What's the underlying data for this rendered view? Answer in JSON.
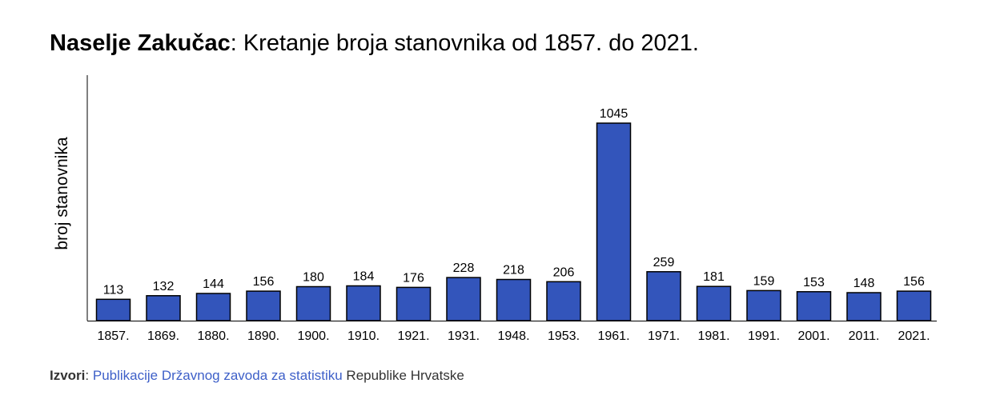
{
  "title": {
    "place": "Naselje Zakučac",
    "separator": ":",
    "text": " Kretanje broja stanovnika od 1857. do 2021."
  },
  "chart_data": {
    "type": "bar",
    "categories": [
      "1857.",
      "1869.",
      "1880.",
      "1890.",
      "1900.",
      "1910.",
      "1921.",
      "1931.",
      "1948.",
      "1953.",
      "1961.",
      "1971.",
      "1981.",
      "1991.",
      "2001.",
      "2011.",
      "2021."
    ],
    "values": [
      113,
      132,
      144,
      156,
      180,
      184,
      176,
      228,
      218,
      206,
      1045,
      259,
      181,
      159,
      153,
      148,
      156
    ],
    "ylabel": "broj stanovnika",
    "ylim": [
      0,
      1200
    ],
    "grid": false,
    "legend": "none",
    "colors": {
      "bar_fill": "#3355bb",
      "bar_stroke": "#000000",
      "axis": "#000000"
    }
  },
  "source": {
    "label": "Izvori",
    "separator": ": ",
    "link_text": "Publikacije Državnog zavoda za statistiku",
    "suffix": " Republike Hrvatske",
    "link_color": "#3d5fc8"
  }
}
